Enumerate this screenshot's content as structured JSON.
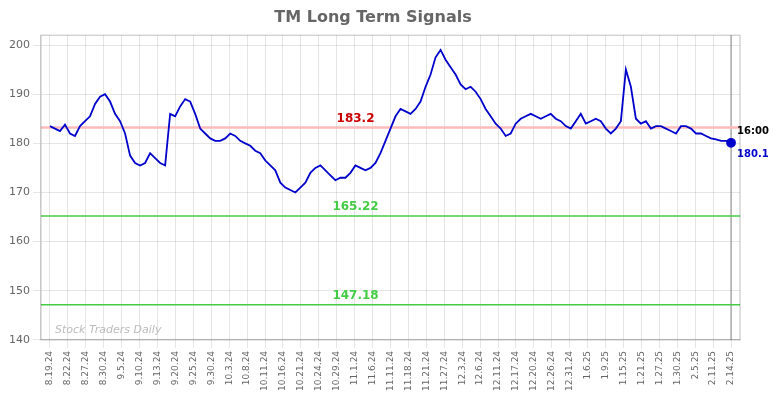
{
  "chart_data": {
    "type": "line",
    "title": "TM Long Term Signals",
    "color": "#0000cc",
    "grid": true,
    "xlim": [
      -0.5,
      38.5
    ],
    "xticks": [
      {
        "value": 0,
        "label": "8.19.24"
      },
      {
        "value": 1,
        "label": "8.22.24"
      },
      {
        "value": 2,
        "label": "8.27.24"
      },
      {
        "value": 3,
        "label": "8.30.24"
      },
      {
        "value": 4,
        "label": "9.5.24"
      },
      {
        "value": 5,
        "label": "9.10.24"
      },
      {
        "value": 6,
        "label": "9.13.24"
      },
      {
        "value": 7,
        "label": "9.20.24"
      },
      {
        "value": 8,
        "label": "9.25.24"
      },
      {
        "value": 9,
        "label": "9.30.24"
      },
      {
        "value": 10,
        "label": "10.3.24"
      },
      {
        "value": 11,
        "label": "10.8.24"
      },
      {
        "value": 12,
        "label": "10.11.24"
      },
      {
        "value": 13,
        "label": "10.16.24"
      },
      {
        "value": 14,
        "label": "10.21.24"
      },
      {
        "value": 15,
        "label": "10.24.24"
      },
      {
        "value": 16,
        "label": "10.29.24"
      },
      {
        "value": 17,
        "label": "11.1.24"
      },
      {
        "value": 18,
        "label": "11.6.24"
      },
      {
        "value": 19,
        "label": "11.11.24"
      },
      {
        "value": 20,
        "label": "11.18.24"
      },
      {
        "value": 21,
        "label": "11.21.24"
      },
      {
        "value": 22,
        "label": "11.27.24"
      },
      {
        "value": 23,
        "label": "12.3.24"
      },
      {
        "value": 24,
        "label": "12.6.24"
      },
      {
        "value": 25,
        "label": "12.11.24"
      },
      {
        "value": 26,
        "label": "12.17.24"
      },
      {
        "value": 27,
        "label": "12.20.24"
      },
      {
        "value": 28,
        "label": "12.26.24"
      },
      {
        "value": 29,
        "label": "12.31.24"
      },
      {
        "value": 30,
        "label": "1.6.25"
      },
      {
        "value": 31,
        "label": "1.9.25"
      },
      {
        "value": 32,
        "label": "1.15.25"
      },
      {
        "value": 33,
        "label": "1.21.25"
      },
      {
        "value": 34,
        "label": "1.27.25"
      },
      {
        "value": 35,
        "label": "1.30.25"
      },
      {
        "value": 36,
        "label": "2.5.25"
      },
      {
        "value": 37,
        "label": "2.11.25"
      },
      {
        "value": 38,
        "label": "2.14.25"
      }
    ],
    "ylim": [
      140,
      202
    ],
    "yticks": [
      140,
      150,
      160,
      170,
      180,
      190,
      200
    ],
    "x": [
      0,
      0.2794,
      0.5588,
      0.8382,
      1.1176,
      1.3971,
      1.6765,
      1.9559,
      2.2353,
      2.5147,
      2.7941,
      3.0735,
      3.3529,
      3.6324,
      3.9118,
      4.1912,
      4.4706,
      4.75,
      5.0294,
      5.3088,
      5.5882,
      5.8676,
      6.1471,
      6.4265,
      6.7059,
      6.9853,
      7.2647,
      7.5441,
      7.8235,
      8.1029,
      8.3824,
      8.6618,
      8.9412,
      9.2206,
      9.5,
      9.7794,
      10.0588,
      10.3382,
      10.6176,
      10.8971,
      11.1765,
      11.4559,
      11.7353,
      12.0147,
      12.2941,
      12.5735,
      12.8529,
      13.1324,
      13.4118,
      13.6912,
      13.9706,
      14.25,
      14.5294,
      14.8088,
      15.0882,
      15.3676,
      15.6471,
      15.9265,
      16.2059,
      16.4853,
      16.7647,
      17.0441,
      17.3235,
      17.6029,
      17.8824,
      18.1618,
      18.4412,
      18.7206,
      19,
      19.2794,
      19.5588,
      19.8382,
      20.1176,
      20.3971,
      20.6765,
      20.9559,
      21.2353,
      21.5147,
      21.7941,
      22.0735,
      22.3529,
      22.6324,
      22.9118,
      23.1912,
      23.4706,
      23.75,
      24.0294,
      24.3088,
      24.5882,
      24.8676,
      25.1471,
      25.4265,
      25.7059,
      25.9853,
      26.2647,
      26.5441,
      26.8235,
      27.1029,
      27.3824,
      27.6618,
      27.9412,
      28.2206,
      28.5,
      28.7794,
      29.0588,
      29.3382,
      29.6176,
      29.8971,
      30.1765,
      30.4559,
      30.7353,
      31.0147,
      31.2941,
      31.5735,
      31.8529,
      32.1324,
      32.4118,
      32.6912,
      32.9706,
      33.25,
      33.5294,
      33.8088,
      34.0882,
      34.3676,
      34.6471,
      34.9265,
      35.2059,
      35.4853,
      35.7647,
      36.0441,
      36.3235,
      36.6029,
      36.8824,
      37.1618,
      37.4412,
      37.7206,
      38
    ],
    "values": [
      183.5,
      183.0,
      182.5,
      183.8,
      182.0,
      181.5,
      183.5,
      184.5,
      185.5,
      188.0,
      189.5,
      190.0,
      188.5,
      186.0,
      184.5,
      182.0,
      177.5,
      176.0,
      175.5,
      176.0,
      178.0,
      177.0,
      176.0,
      175.5,
      186.0,
      185.5,
      187.5,
      189.0,
      188.5,
      186.0,
      183.0,
      182.0,
      181.0,
      180.5,
      180.5,
      181.0,
      182.0,
      181.5,
      180.5,
      180.0,
      179.5,
      178.5,
      178.0,
      176.5,
      175.5,
      174.5,
      172.0,
      171.0,
      170.5,
      170.0,
      171.0,
      172.0,
      174.0,
      175.0,
      175.5,
      174.5,
      173.5,
      172.5,
      173.0,
      173.0,
      174.0,
      175.5,
      175.0,
      174.5,
      175.0,
      176.0,
      178.0,
      180.5,
      183.0,
      185.5,
      187.0,
      186.5,
      186.0,
      187.0,
      188.5,
      191.5,
      194.0,
      197.5,
      199.0,
      197.0,
      195.5,
      194.0,
      192.0,
      191.0,
      191.5,
      190.5,
      189.0,
      187.0,
      185.5,
      184.0,
      183.0,
      181.5,
      182.0,
      184.0,
      185.0,
      185.5,
      186.0,
      185.5,
      185.0,
      185.5,
      186.0,
      185.0,
      184.5,
      183.5,
      183.0,
      184.5,
      186.0,
      184.0,
      184.5,
      185.0,
      184.5,
      183.0,
      182.0,
      183.0,
      184.5,
      195.0,
      191.5,
      185.0,
      184.0,
      184.5,
      183.0,
      183.5,
      183.5,
      183.0,
      182.5,
      182.0,
      183.5,
      183.5,
      183.0,
      182.0,
      182.0,
      181.5,
      181.0,
      180.8,
      180.5,
      180.5,
      180.1
    ],
    "hlines": [
      {
        "value": 183.2,
        "label": "183.2",
        "color": "#ffbbbb",
        "label_color": "#cc0000"
      },
      {
        "value": 165.22,
        "label": "165.22",
        "color": "#44cc44",
        "label_color": "#44cc44"
      },
      {
        "value": 147.18,
        "label": "147.18",
        "color": "#44cc44",
        "label_color": "#44cc44"
      }
    ],
    "annotations": [
      {
        "text": "16:00",
        "color": "#000000"
      },
      {
        "text": "180.1",
        "color": "#0000cc"
      }
    ],
    "watermark": {
      "text": "Stock Traders Daily",
      "color": "#bbbbbb"
    }
  }
}
